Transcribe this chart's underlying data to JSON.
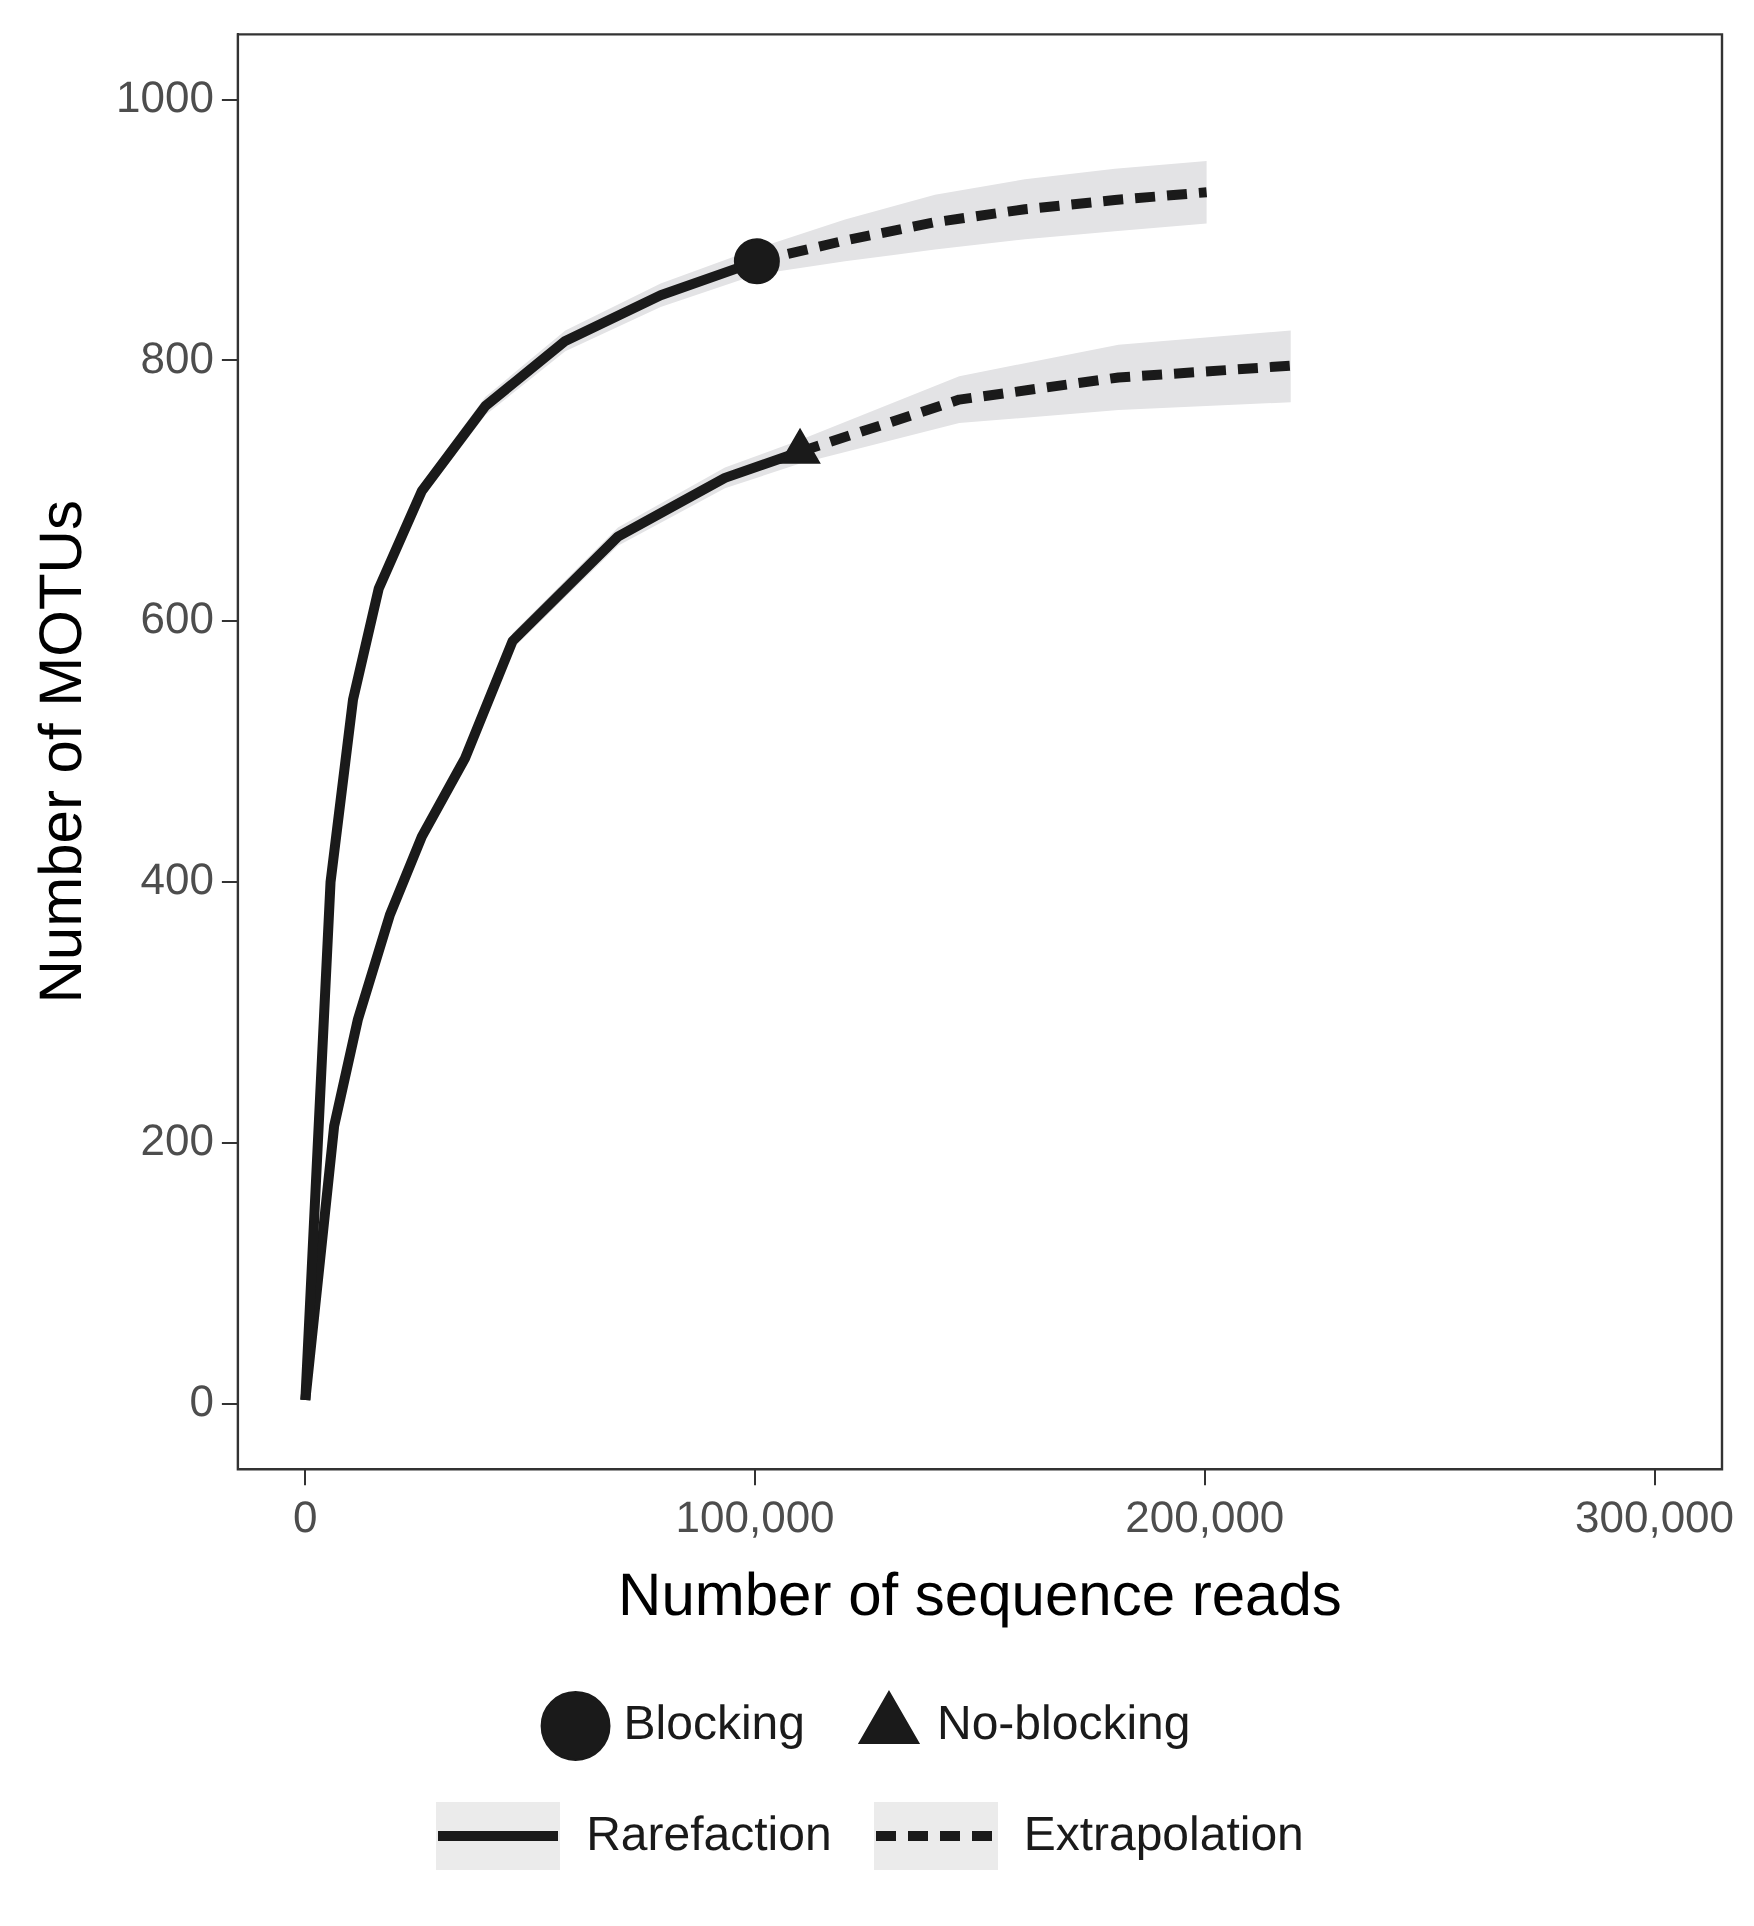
{
  "chart_data": {
    "type": "line",
    "xlabel": "Number of sequence reads",
    "ylabel": "Number of MOTUs",
    "xlim": [
      -15000,
      315000
    ],
    "ylim": [
      -50,
      1050
    ],
    "xticks": [
      {
        "value": 0,
        "label": "0"
      },
      {
        "value": 100000,
        "label": "100,000"
      },
      {
        "value": 200000,
        "label": "200,000"
      },
      {
        "value": 300000,
        "label": "300,000"
      }
    ],
    "yticks": [
      0,
      200,
      400,
      600,
      800,
      1000
    ],
    "grid": false,
    "legend": "bottom",
    "series": [
      {
        "name": "Rarefaction",
        "color": "#1a1a1a",
        "line_style": "solid",
        "x": [
          0,
          5600,
          10600,
          16300,
          25900,
          40000,
          57800,
          79000,
          100400
        ],
        "values": [
          3,
          400,
          540,
          625,
          700,
          765,
          815,
          850,
          876
        ],
        "lower": [
          3,
          398,
          536,
          620,
          694,
          758,
          807,
          841,
          866
        ],
        "upper": [
          3,
          402,
          544,
          630,
          706,
          772,
          823,
          859,
          886
        ]
      },
      {
        "name": "Extrapolation",
        "color": "#1a1a1a",
        "line_style": "dashed",
        "x": [
          100400,
          120000,
          140000,
          160000,
          180000,
          200400
        ],
        "values": [
          876,
          892,
          906,
          916,
          923,
          929
        ],
        "lower": [
          866,
          876,
          885,
          893,
          899,
          905
        ],
        "upper": [
          886,
          908,
          927,
          939,
          947,
          953
        ]
      },
      {
        "color": "#1a1a1a",
        "line_style": "solid",
        "x": [
          0,
          6400,
          11700,
          18800,
          25900,
          35500,
          46100,
          69500,
          93300,
          110000
        ],
        "values": [
          3,
          213,
          295,
          375,
          435,
          495,
          585,
          665,
          710,
          730
        ],
        "lower": [
          3,
          212,
          293,
          372,
          431,
          490,
          579,
          658,
          702,
          721
        ],
        "upper": [
          3,
          214,
          297,
          378,
          439,
          500,
          591,
          672,
          718,
          739
        ]
      },
      {
        "color": "#1a1a1a",
        "line_style": "dashed",
        "x": [
          110000,
          145400,
          180800,
          219100
        ],
        "values": [
          730,
          770,
          787,
          796
        ],
        "lower": [
          721,
          752,
          762,
          768
        ],
        "upper": [
          739,
          788,
          812,
          823
        ]
      },
      {
        "name": "Blocking",
        "type": "scatter",
        "marker": "circle",
        "color": "#1a1a1a",
        "x": [
          100400
        ],
        "values": [
          876
        ]
      },
      {
        "name": "No-blocking",
        "type": "scatter",
        "marker": "triangle",
        "color": "#1a1a1a",
        "x": [
          110000
        ],
        "values": [
          730
        ]
      }
    ]
  }
}
